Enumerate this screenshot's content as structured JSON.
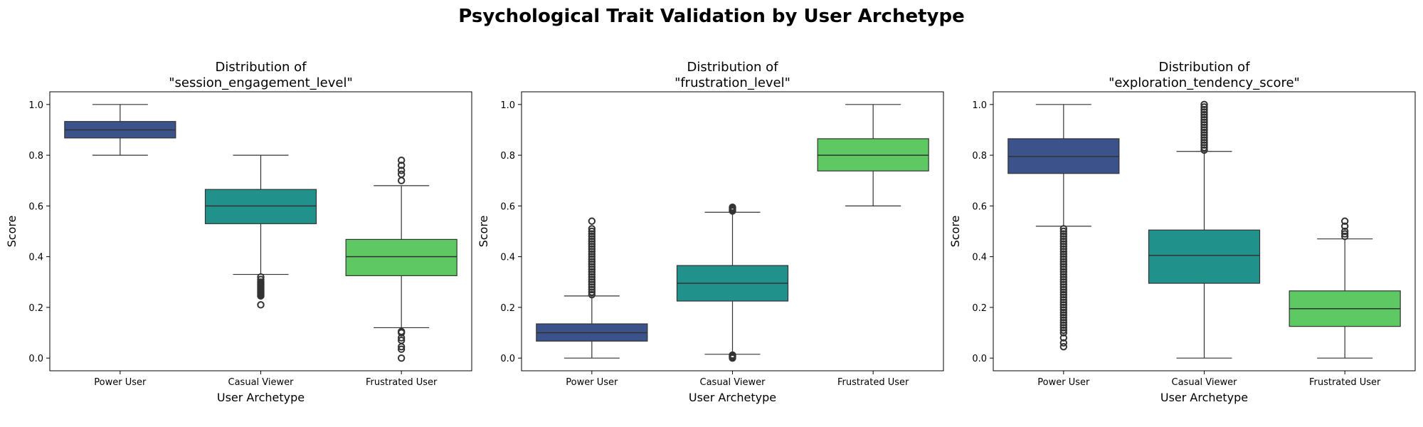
{
  "figure_title": "Psychological Trait Validation by User Archetype",
  "colors": {
    "Power User": "#3b528b",
    "Casual Viewer": "#21918c",
    "Frustrated User": "#5ec962",
    "median": "#333333",
    "whisker": "#333333"
  },
  "chart_data": [
    {
      "type": "box",
      "title": "Distribution of\n\"session_engagement_level\"",
      "title_lines": [
        "Distribution of",
        "\"session_engagement_level\""
      ],
      "xlabel": "User Archetype",
      "ylabel": "Score",
      "ylim": [
        -0.05,
        1.05
      ],
      "yticks": [
        0.0,
        0.2,
        0.4,
        0.6,
        0.8,
        1.0
      ],
      "ytick_labels": [
        "0.0",
        "0.2",
        "0.4",
        "0.6",
        "0.8",
        "1.0"
      ],
      "categories": [
        "Power User",
        "Casual Viewer",
        "Frustrated User"
      ],
      "boxes": [
        {
          "category": "Power User",
          "whisker_low": 0.8,
          "q1": 0.868,
          "median": 0.9,
          "q3": 0.933,
          "whisker_high": 1.0,
          "outliers": []
        },
        {
          "category": "Casual Viewer",
          "whisker_low": 0.33,
          "q1": 0.53,
          "median": 0.6,
          "q3": 0.665,
          "whisker_high": 0.8,
          "outliers": [
            0.32,
            0.31,
            0.3,
            0.295,
            0.29,
            0.285,
            0.28,
            0.275,
            0.27,
            0.265,
            0.26,
            0.255,
            0.25,
            0.245,
            0.21
          ]
        },
        {
          "category": "Frustrated User",
          "whisker_low": 0.12,
          "q1": 0.325,
          "median": 0.4,
          "q3": 0.468,
          "whisker_high": 0.68,
          "outliers": [
            0.7,
            0.725,
            0.74,
            0.76,
            0.78,
            0.105,
            0.1,
            0.08,
            0.07,
            0.045,
            0.035,
            0.0
          ]
        }
      ]
    },
    {
      "type": "box",
      "title": "Distribution of\n\"frustration_level\"",
      "title_lines": [
        "Distribution of",
        "\"frustration_level\""
      ],
      "xlabel": "User Archetype",
      "ylabel": "Score",
      "ylim": [
        -0.05,
        1.05
      ],
      "yticks": [
        0.0,
        0.2,
        0.4,
        0.6,
        0.8,
        1.0
      ],
      "ytick_labels": [
        "0.0",
        "0.2",
        "0.4",
        "0.6",
        "0.8",
        "1.0"
      ],
      "categories": [
        "Power User",
        "Casual Viewer",
        "Frustrated User"
      ],
      "boxes": [
        {
          "category": "Power User",
          "whisker_low": 0.0,
          "q1": 0.067,
          "median": 0.1,
          "q3": 0.135,
          "whisker_high": 0.245,
          "outliers": [
            0.25,
            0.26,
            0.27,
            0.28,
            0.29,
            0.3,
            0.31,
            0.32,
            0.33,
            0.34,
            0.35,
            0.36,
            0.37,
            0.38,
            0.39,
            0.4,
            0.41,
            0.42,
            0.43,
            0.44,
            0.45,
            0.46,
            0.47,
            0.48,
            0.49,
            0.5,
            0.51,
            0.54
          ]
        },
        {
          "category": "Casual Viewer",
          "whisker_low": 0.015,
          "q1": 0.225,
          "median": 0.295,
          "q3": 0.365,
          "whisker_high": 0.575,
          "outliers": [
            0.58,
            0.585,
            0.59,
            0.595,
            0.012,
            0.008,
            0.004,
            0.0
          ]
        },
        {
          "category": "Frustrated User",
          "whisker_low": 0.6,
          "q1": 0.738,
          "median": 0.8,
          "q3": 0.865,
          "whisker_high": 1.0,
          "outliers": []
        }
      ]
    },
    {
      "type": "box",
      "title": "Distribution of\n\"exploration_tendency_score\"",
      "title_lines": [
        "Distribution of",
        "\"exploration_tendency_score\""
      ],
      "xlabel": "User Archetype",
      "ylabel": "Score",
      "ylim": [
        -0.05,
        1.05
      ],
      "yticks": [
        0.0,
        0.2,
        0.4,
        0.6,
        0.8,
        1.0
      ],
      "ytick_labels": [
        "0.0",
        "0.2",
        "0.4",
        "0.6",
        "0.8",
        "1.0"
      ],
      "categories": [
        "Power User",
        "Casual Viewer",
        "Frustrated User"
      ],
      "boxes": [
        {
          "category": "Power User",
          "whisker_low": 0.52,
          "q1": 0.728,
          "median": 0.795,
          "q3": 0.865,
          "whisker_high": 1.0,
          "outliers": [
            0.51,
            0.5,
            0.49,
            0.48,
            0.47,
            0.46,
            0.45,
            0.44,
            0.43,
            0.42,
            0.41,
            0.4,
            0.39,
            0.38,
            0.37,
            0.36,
            0.35,
            0.34,
            0.33,
            0.32,
            0.31,
            0.3,
            0.29,
            0.28,
            0.27,
            0.26,
            0.25,
            0.24,
            0.23,
            0.22,
            0.21,
            0.2,
            0.19,
            0.18,
            0.17,
            0.16,
            0.15,
            0.14,
            0.13,
            0.12,
            0.11,
            0.1,
            0.08,
            0.06,
            0.045
          ]
        },
        {
          "category": "Casual Viewer",
          "whisker_low": 0.0,
          "q1": 0.295,
          "median": 0.405,
          "q3": 0.505,
          "whisker_high": 0.815,
          "outliers": [
            0.82,
            0.83,
            0.84,
            0.85,
            0.86,
            0.87,
            0.88,
            0.89,
            0.9,
            0.91,
            0.92,
            0.93,
            0.94,
            0.95,
            0.96,
            0.97,
            0.98,
            0.99,
            1.0
          ]
        },
        {
          "category": "Frustrated User",
          "whisker_low": 0.0,
          "q1": 0.125,
          "median": 0.195,
          "q3": 0.265,
          "whisker_high": 0.47,
          "outliers": [
            0.48,
            0.49,
            0.5,
            0.52,
            0.54
          ]
        }
      ]
    }
  ]
}
